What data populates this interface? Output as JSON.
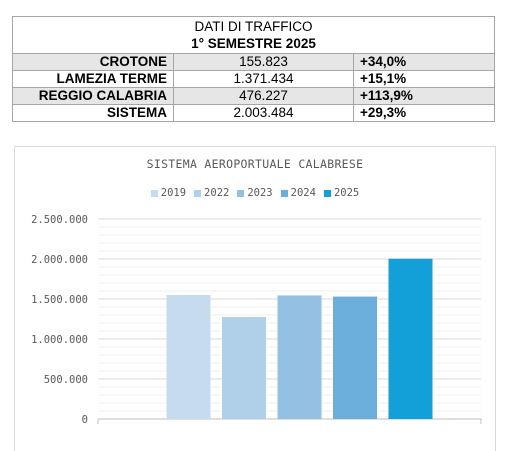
{
  "table": {
    "title": "DATI DI TRAFFICO",
    "subtitle": "1° SEMESTRE 2025",
    "rows": [
      {
        "name": "CROTONE",
        "value": "155.823",
        "change": "+34,0%"
      },
      {
        "name": "LAMEZIA TERME",
        "value": "1.371.434",
        "change": "+15,1%"
      },
      {
        "name": "REGGIO CALABRIA",
        "value": "476.227",
        "change": "+113,9%"
      },
      {
        "name": "SISTEMA",
        "value": "2.003.484",
        "change": "+29,3%"
      }
    ]
  },
  "chart_data": {
    "type": "bar",
    "title": "SISTEMA AEROPORTUALE CALABRESE",
    "xlabel": "",
    "ylabel": "",
    "ylim": [
      0,
      2500000
    ],
    "yticks": [
      0,
      500000,
      1000000,
      1500000,
      2000000,
      2500000
    ],
    "ytick_labels": [
      "0",
      "500.000",
      "1.000.000",
      "1.500.000",
      "2.000.000",
      "2.500.000"
    ],
    "grid": true,
    "legend_position": "top",
    "series": [
      {
        "name": "2019",
        "value": 1550000,
        "color": "#c6dcee"
      },
      {
        "name": "2022",
        "value": 1275000,
        "color": "#b0cfe8"
      },
      {
        "name": "2023",
        "value": 1545000,
        "color": "#94c0e3"
      },
      {
        "name": "2024",
        "value": 1530000,
        "color": "#6caedb"
      },
      {
        "name": "2025",
        "value": 2003484,
        "color": "#139fd7"
      }
    ]
  }
}
